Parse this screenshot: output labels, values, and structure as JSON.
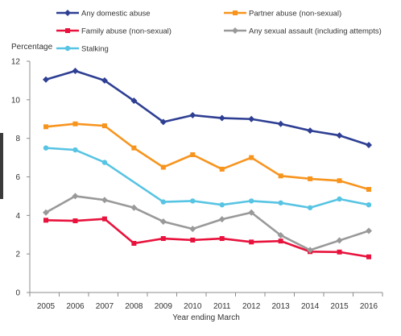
{
  "chart_data": {
    "type": "line",
    "title": "",
    "ylabel": "Percentage",
    "xlabel": "Year ending March",
    "x": [
      "2005",
      "2006",
      "2007",
      "2008",
      "2009",
      "2010",
      "2011",
      "2012",
      "2013",
      "2014",
      "2015",
      "2016"
    ],
    "ylim": [
      0,
      12
    ],
    "yticks": [
      "0",
      "2",
      "4",
      "6",
      "8",
      "10",
      "12"
    ],
    "grid": false,
    "legend_placement": "top",
    "series": [
      {
        "name": "Any domestic abuse",
        "color": "#2e3f93",
        "marker": "diamond",
        "values": [
          11.05,
          11.5,
          11.0,
          9.95,
          8.85,
          9.2,
          9.05,
          9.0,
          8.75,
          8.4,
          8.15,
          7.65
        ]
      },
      {
        "name": "Partner abuse (non-sexual)",
        "color": "#f7941d",
        "marker": "square",
        "values": [
          8.6,
          8.75,
          8.65,
          7.5,
          6.5,
          7.15,
          6.4,
          7.0,
          6.05,
          5.9,
          5.8,
          5.35
        ]
      },
      {
        "name": "Family abuse (non-sexual)",
        "color": "#e8123c",
        "marker": "square",
        "values": [
          3.75,
          3.72,
          3.82,
          2.55,
          2.8,
          2.72,
          2.8,
          2.62,
          2.67,
          2.12,
          2.1,
          1.85
        ]
      },
      {
        "name": "Any sexual assault (including attempts)",
        "color": "#999999",
        "marker": "diamond",
        "values": [
          4.15,
          5.0,
          4.8,
          4.4,
          3.68,
          3.3,
          3.8,
          4.15,
          2.97,
          2.2,
          2.7,
          3.2
        ]
      },
      {
        "name": "Stalking",
        "color": "#58c4e3",
        "marker": "circle",
        "values": [
          7.5,
          7.4,
          6.75,
          null,
          4.7,
          4.75,
          4.55,
          4.75,
          4.65,
          4.4,
          4.85,
          4.55
        ]
      }
    ]
  }
}
